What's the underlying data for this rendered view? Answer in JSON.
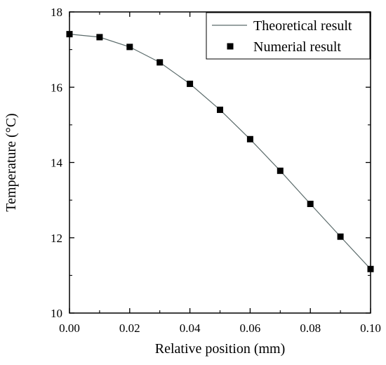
{
  "chart_data": {
    "type": "line",
    "title": "",
    "xlabel": "Relative position (mm)",
    "ylabel": "Temperature (°C)",
    "xlim": [
      0.0,
      0.1
    ],
    "ylim": [
      10,
      18
    ],
    "xticks": [
      "0.00",
      "0.02",
      "0.04",
      "0.06",
      "0.08",
      "0.10"
    ],
    "yticks": [
      "10",
      "12",
      "14",
      "16",
      "18"
    ],
    "legend_position": "top-right",
    "grid": false,
    "series": [
      {
        "name": "Theoretical result",
        "style": "line",
        "color": "#5a6a6a",
        "x": [
          0.0,
          0.01,
          0.02,
          0.03,
          0.04,
          0.05,
          0.06,
          0.07,
          0.08,
          0.09,
          0.1
        ],
        "y": [
          17.41,
          17.33,
          17.07,
          16.66,
          16.09,
          15.4,
          14.62,
          13.78,
          12.9,
          12.03,
          11.17
        ]
      },
      {
        "name": "Numerial result",
        "style": "markers",
        "marker": "square",
        "color": "#000000",
        "x": [
          0.0,
          0.01,
          0.02,
          0.03,
          0.04,
          0.05,
          0.06,
          0.07,
          0.08,
          0.09,
          0.1
        ],
        "y": [
          17.41,
          17.33,
          17.07,
          16.66,
          16.09,
          15.4,
          14.62,
          13.78,
          12.9,
          12.03,
          11.17
        ]
      }
    ]
  }
}
